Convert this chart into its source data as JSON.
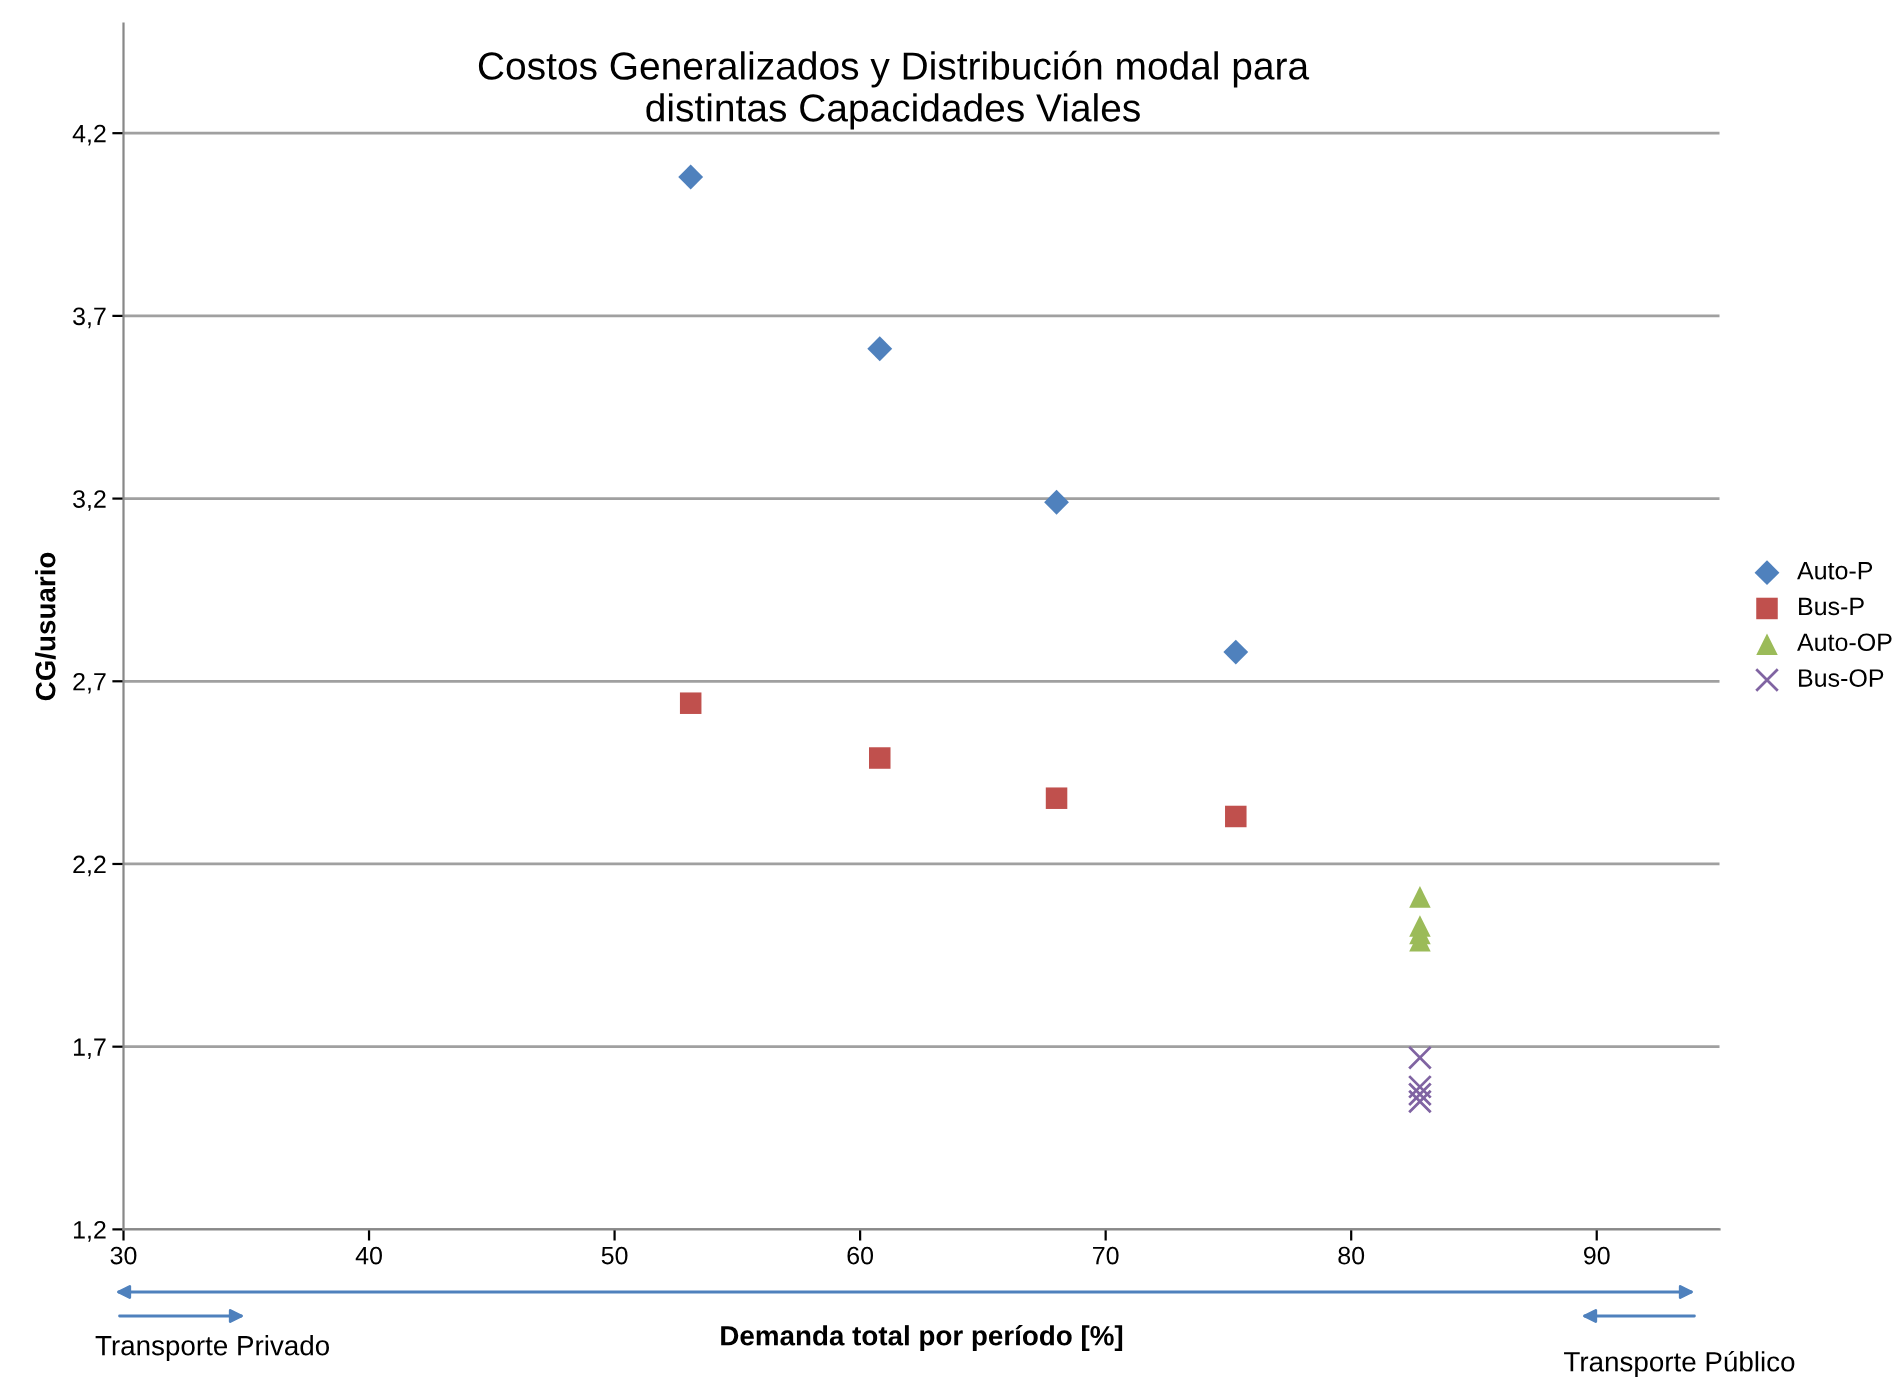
{
  "chart_data": {
    "type": "scatter",
    "title": "Costos Generalizados y Distribución modal para\ndistintas Capacidades Viales",
    "xlabel": "Demanda total por período [%]",
    "ylabel": "CG/usuario",
    "series": [
      {
        "name": "Auto-P",
        "color": "#4f81bd",
        "marker": "diamond",
        "x": [
          53.1,
          60.8,
          68.0,
          75.3
        ],
        "values": [
          4.08,
          3.61,
          3.19,
          2.78
        ]
      },
      {
        "name": "Bus-P",
        "color": "#c0504d",
        "marker": "square",
        "x": [
          53.1,
          60.8,
          68.0,
          75.3
        ],
        "values": [
          2.64,
          2.49,
          2.38,
          2.33
        ]
      },
      {
        "name": "Auto-OP",
        "color": "#9bbb59",
        "marker": "triangle",
        "x": [
          82.8,
          82.8,
          82.8,
          82.8
        ],
        "values": [
          2.11,
          2.03,
          2.01,
          1.99
        ]
      },
      {
        "name": "Bus-OP",
        "color": "#8064a2",
        "marker": "cross",
        "x": [
          82.8,
          82.8,
          82.8,
          82.8
        ],
        "values": [
          1.67,
          1.59,
          1.57,
          1.55
        ]
      }
    ],
    "xlim": [
      30,
      95
    ],
    "xticks": [
      30,
      40,
      50,
      60,
      70,
      80,
      90
    ],
    "ylim": [
      1.2,
      4.5
    ],
    "yticks": [
      {
        "value": 1.2,
        "label": "1,2"
      },
      {
        "value": 1.7,
        "label": "1,7"
      },
      {
        "value": 2.2,
        "label": "2,2"
      },
      {
        "value": 2.7,
        "label": "2,7"
      },
      {
        "value": 3.2,
        "label": "3,2"
      },
      {
        "value": 3.7,
        "label": "3,7"
      },
      {
        "value": 4.2,
        "label": "4,2"
      }
    ],
    "grid": "y",
    "legend": "right",
    "annotations": [
      "Transporte Privado",
      "Transporte Público"
    ]
  }
}
